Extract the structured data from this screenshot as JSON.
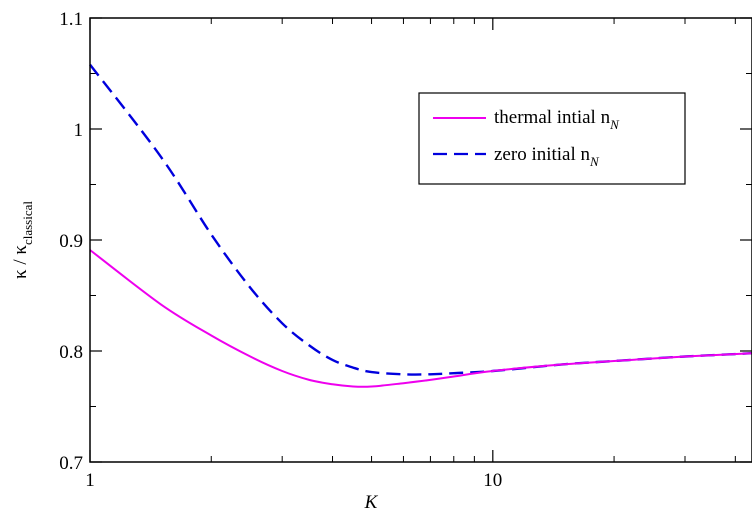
{
  "chart_data": {
    "type": "line",
    "xlabel": "K",
    "ylabel_main": "κ / κ",
    "ylabel_sub": "classical",
    "xscale": "log",
    "xlim": [
      1,
      44
    ],
    "ylim": [
      0.7,
      1.1
    ],
    "xticks": [
      {
        "value": 1,
        "label": "1"
      },
      {
        "value": 10,
        "label": "10"
      }
    ],
    "xminor": [
      2,
      3,
      4,
      5,
      6,
      7,
      8,
      9,
      20,
      30,
      40
    ],
    "yticks": [
      {
        "value": 0.7,
        "label": "0.7"
      },
      {
        "value": 0.8,
        "label": "0.8"
      },
      {
        "value": 0.9,
        "label": "0.9"
      },
      {
        "value": 1.0,
        "label": "1"
      },
      {
        "value": 1.1,
        "label": "1.1"
      }
    ],
    "yminor": [
      0.75,
      0.85,
      0.95,
      1.05
    ],
    "grid": false,
    "legend_position": "top-right",
    "series": [
      {
        "name": "thermal intial n",
        "name_sub": "N",
        "color": "#ee00ee",
        "dash": "solid",
        "x": [
          1,
          1.5,
          2,
          2.5,
          3,
          3.5,
          4,
          4.5,
          5,
          6,
          7,
          8,
          10,
          15,
          20,
          30,
          44
        ],
        "y": [
          0.891,
          0.842,
          0.814,
          0.795,
          0.782,
          0.774,
          0.77,
          0.768,
          0.768,
          0.771,
          0.774,
          0.777,
          0.782,
          0.788,
          0.791,
          0.795,
          0.798
        ]
      },
      {
        "name": "zero initial n",
        "name_sub": "N",
        "color": "#0000dd",
        "dash": "dashed",
        "x": [
          1,
          1.5,
          2,
          2.5,
          3,
          3.5,
          4,
          4.5,
          5,
          6,
          7,
          8,
          10,
          15,
          20,
          30,
          44
        ],
        "y": [
          1.058,
          0.975,
          0.905,
          0.857,
          0.825,
          0.805,
          0.792,
          0.785,
          0.781,
          0.779,
          0.779,
          0.78,
          0.782,
          0.788,
          0.791,
          0.795,
          0.798
        ]
      }
    ]
  }
}
